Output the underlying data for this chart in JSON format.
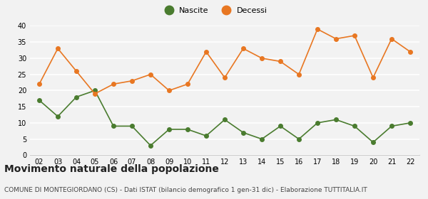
{
  "years": [
    "02",
    "03",
    "04",
    "05",
    "06",
    "07",
    "08",
    "09",
    "10",
    "11",
    "12",
    "13",
    "14",
    "15",
    "16",
    "17",
    "18",
    "19",
    "20",
    "21",
    "22"
  ],
  "nascite": [
    17,
    12,
    18,
    20,
    9,
    9,
    3,
    8,
    8,
    6,
    11,
    7,
    5,
    9,
    5,
    10,
    11,
    9,
    4,
    9,
    10
  ],
  "decessi": [
    22,
    33,
    26,
    19,
    22,
    23,
    25,
    20,
    22,
    32,
    24,
    33,
    30,
    29,
    25,
    39,
    36,
    37,
    24,
    36,
    32
  ],
  "nascite_color": "#4a7c2f",
  "decessi_color": "#e87722",
  "background_color": "#f2f2f2",
  "grid_color": "#ffffff",
  "title": "Movimento naturale della popolazione",
  "subtitle": "COMUNE DI MONTEGIORDANO (CS) - Dati ISTAT (bilancio demografico 1 gen-31 dic) - Elaborazione TUTTITALIA.IT",
  "legend_nascite": "Nascite",
  "legend_decessi": "Decessi",
  "ylim": [
    0,
    40
  ],
  "yticks": [
    0,
    5,
    10,
    15,
    20,
    25,
    30,
    35,
    40
  ],
  "title_fontsize": 10,
  "subtitle_fontsize": 6.5,
  "marker_size": 4,
  "line_width": 1.2
}
